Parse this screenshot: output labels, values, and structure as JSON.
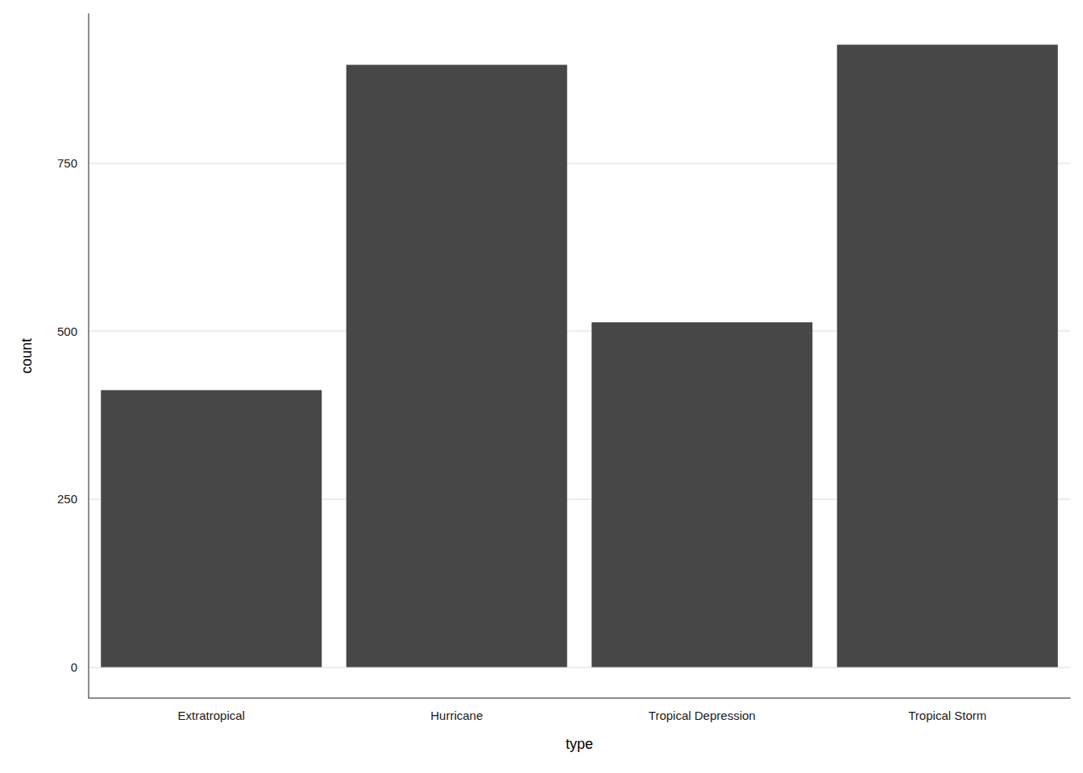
{
  "chart_data": {
    "type": "bar",
    "x_label": "type",
    "y_label": "count",
    "categories": [
      "Extratropical",
      "Hurricane",
      "Tropical Depression",
      "Tropical Storm"
    ],
    "values": [
      412,
      896,
      513,
      926
    ],
    "color": "#474747",
    "ylim": [
      -46,
      972
    ],
    "yticks": [
      0,
      250,
      500,
      750
    ],
    "grid": true
  }
}
